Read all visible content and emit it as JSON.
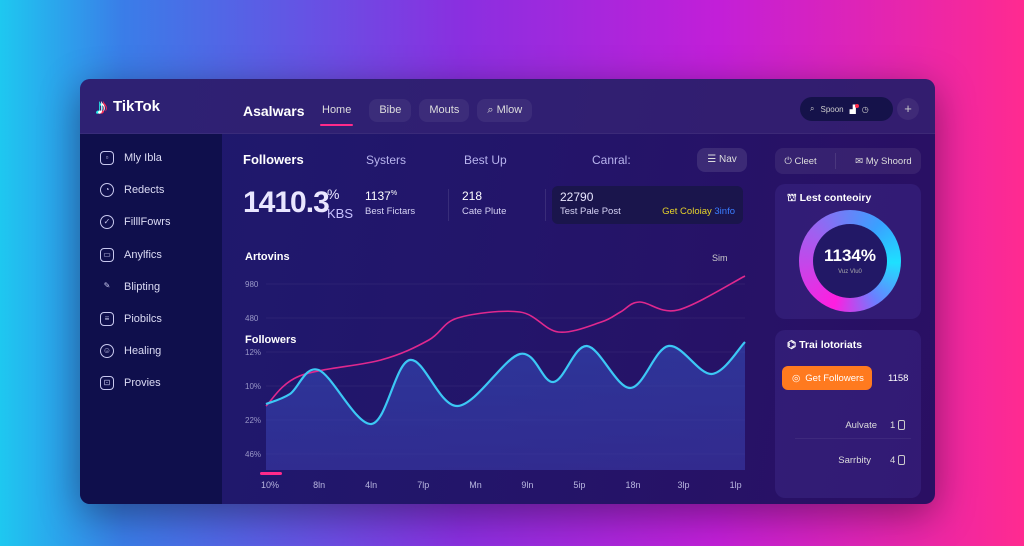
{
  "app": {
    "name": "TikTok",
    "section_title": "Asalwars"
  },
  "header": {
    "tabs": [
      "Home",
      "Bibe",
      "Mouts",
      "Mlow"
    ],
    "active_tab": "Home",
    "search_label": "Spoon",
    "plus": "+"
  },
  "sidebar": {
    "items": [
      "Mly Ibla",
      "Redects",
      "FilllFowrs",
      "Anylfics",
      "Blipting",
      "Piobilcs",
      "Healing",
      "Provies"
    ]
  },
  "main": {
    "subtabs": [
      "Followers",
      "Systers",
      "Best Up",
      "Canral:"
    ],
    "nav_label": "Nav",
    "big_value": "1410.3",
    "big_unit_top": "%",
    "big_unit_bottom": "KBS",
    "stats": [
      {
        "value": "1137",
        "suffix": "%",
        "label": "Best Fictars"
      },
      {
        "value": "218",
        "label": "Cate Plute"
      }
    ],
    "highlight": {
      "value": "22790",
      "label": "Test Pale Post",
      "link1": "Get Coloiay",
      "link2": "3info"
    }
  },
  "chart_data": {
    "type": "line",
    "title": "Artovins",
    "series_label": "Followers",
    "range_label": "Sim",
    "yticks": [
      "980",
      "480",
      "12%",
      "10%",
      "22%",
      "46%"
    ],
    "xticks": [
      "10%",
      "8ln",
      "4ln",
      "7lp",
      "Mn",
      "9ln",
      "5ip",
      "18n",
      "3lp",
      "1lp"
    ],
    "ylim": [
      0,
      100
    ],
    "xlim": [
      0,
      100
    ],
    "series": [
      {
        "name": "pink",
        "color": "#e0288e",
        "x": [
          0,
          7,
          24,
          34,
          40,
          53,
          61,
          70,
          74,
          78,
          86,
          100
        ],
        "y": [
          32,
          47,
          55,
          65,
          76,
          79,
          69,
          74,
          79,
          84,
          80,
          97
        ]
      },
      {
        "name": "cyan",
        "color": "#3cc8f5",
        "x": [
          0,
          5,
          11,
          22,
          30,
          40,
          53,
          60,
          67,
          76,
          84,
          93,
          100
        ],
        "y": [
          33,
          38,
          50,
          23,
          55,
          32,
          58,
          44,
          62,
          41,
          62,
          48,
          64
        ]
      }
    ]
  },
  "right": {
    "buttons": [
      "Cleet",
      "My Shoord"
    ],
    "donut": {
      "title": "Lest conteoiry",
      "value": "1134%",
      "sub": "Vuz Vlu0",
      "fraction": 1.0
    },
    "trial": {
      "title": "Trai lotoriats",
      "button": "Get Followers",
      "count": "1158",
      "rows": [
        {
          "label": "Aulvate",
          "value": "1"
        },
        {
          "label": "Sarrbity",
          "value": "4"
        }
      ]
    }
  },
  "colors": {
    "accent": "#ff2a8a",
    "orange": "#ff7a1f",
    "cyan": "#3cc8f5",
    "pink": "#e0288e"
  }
}
